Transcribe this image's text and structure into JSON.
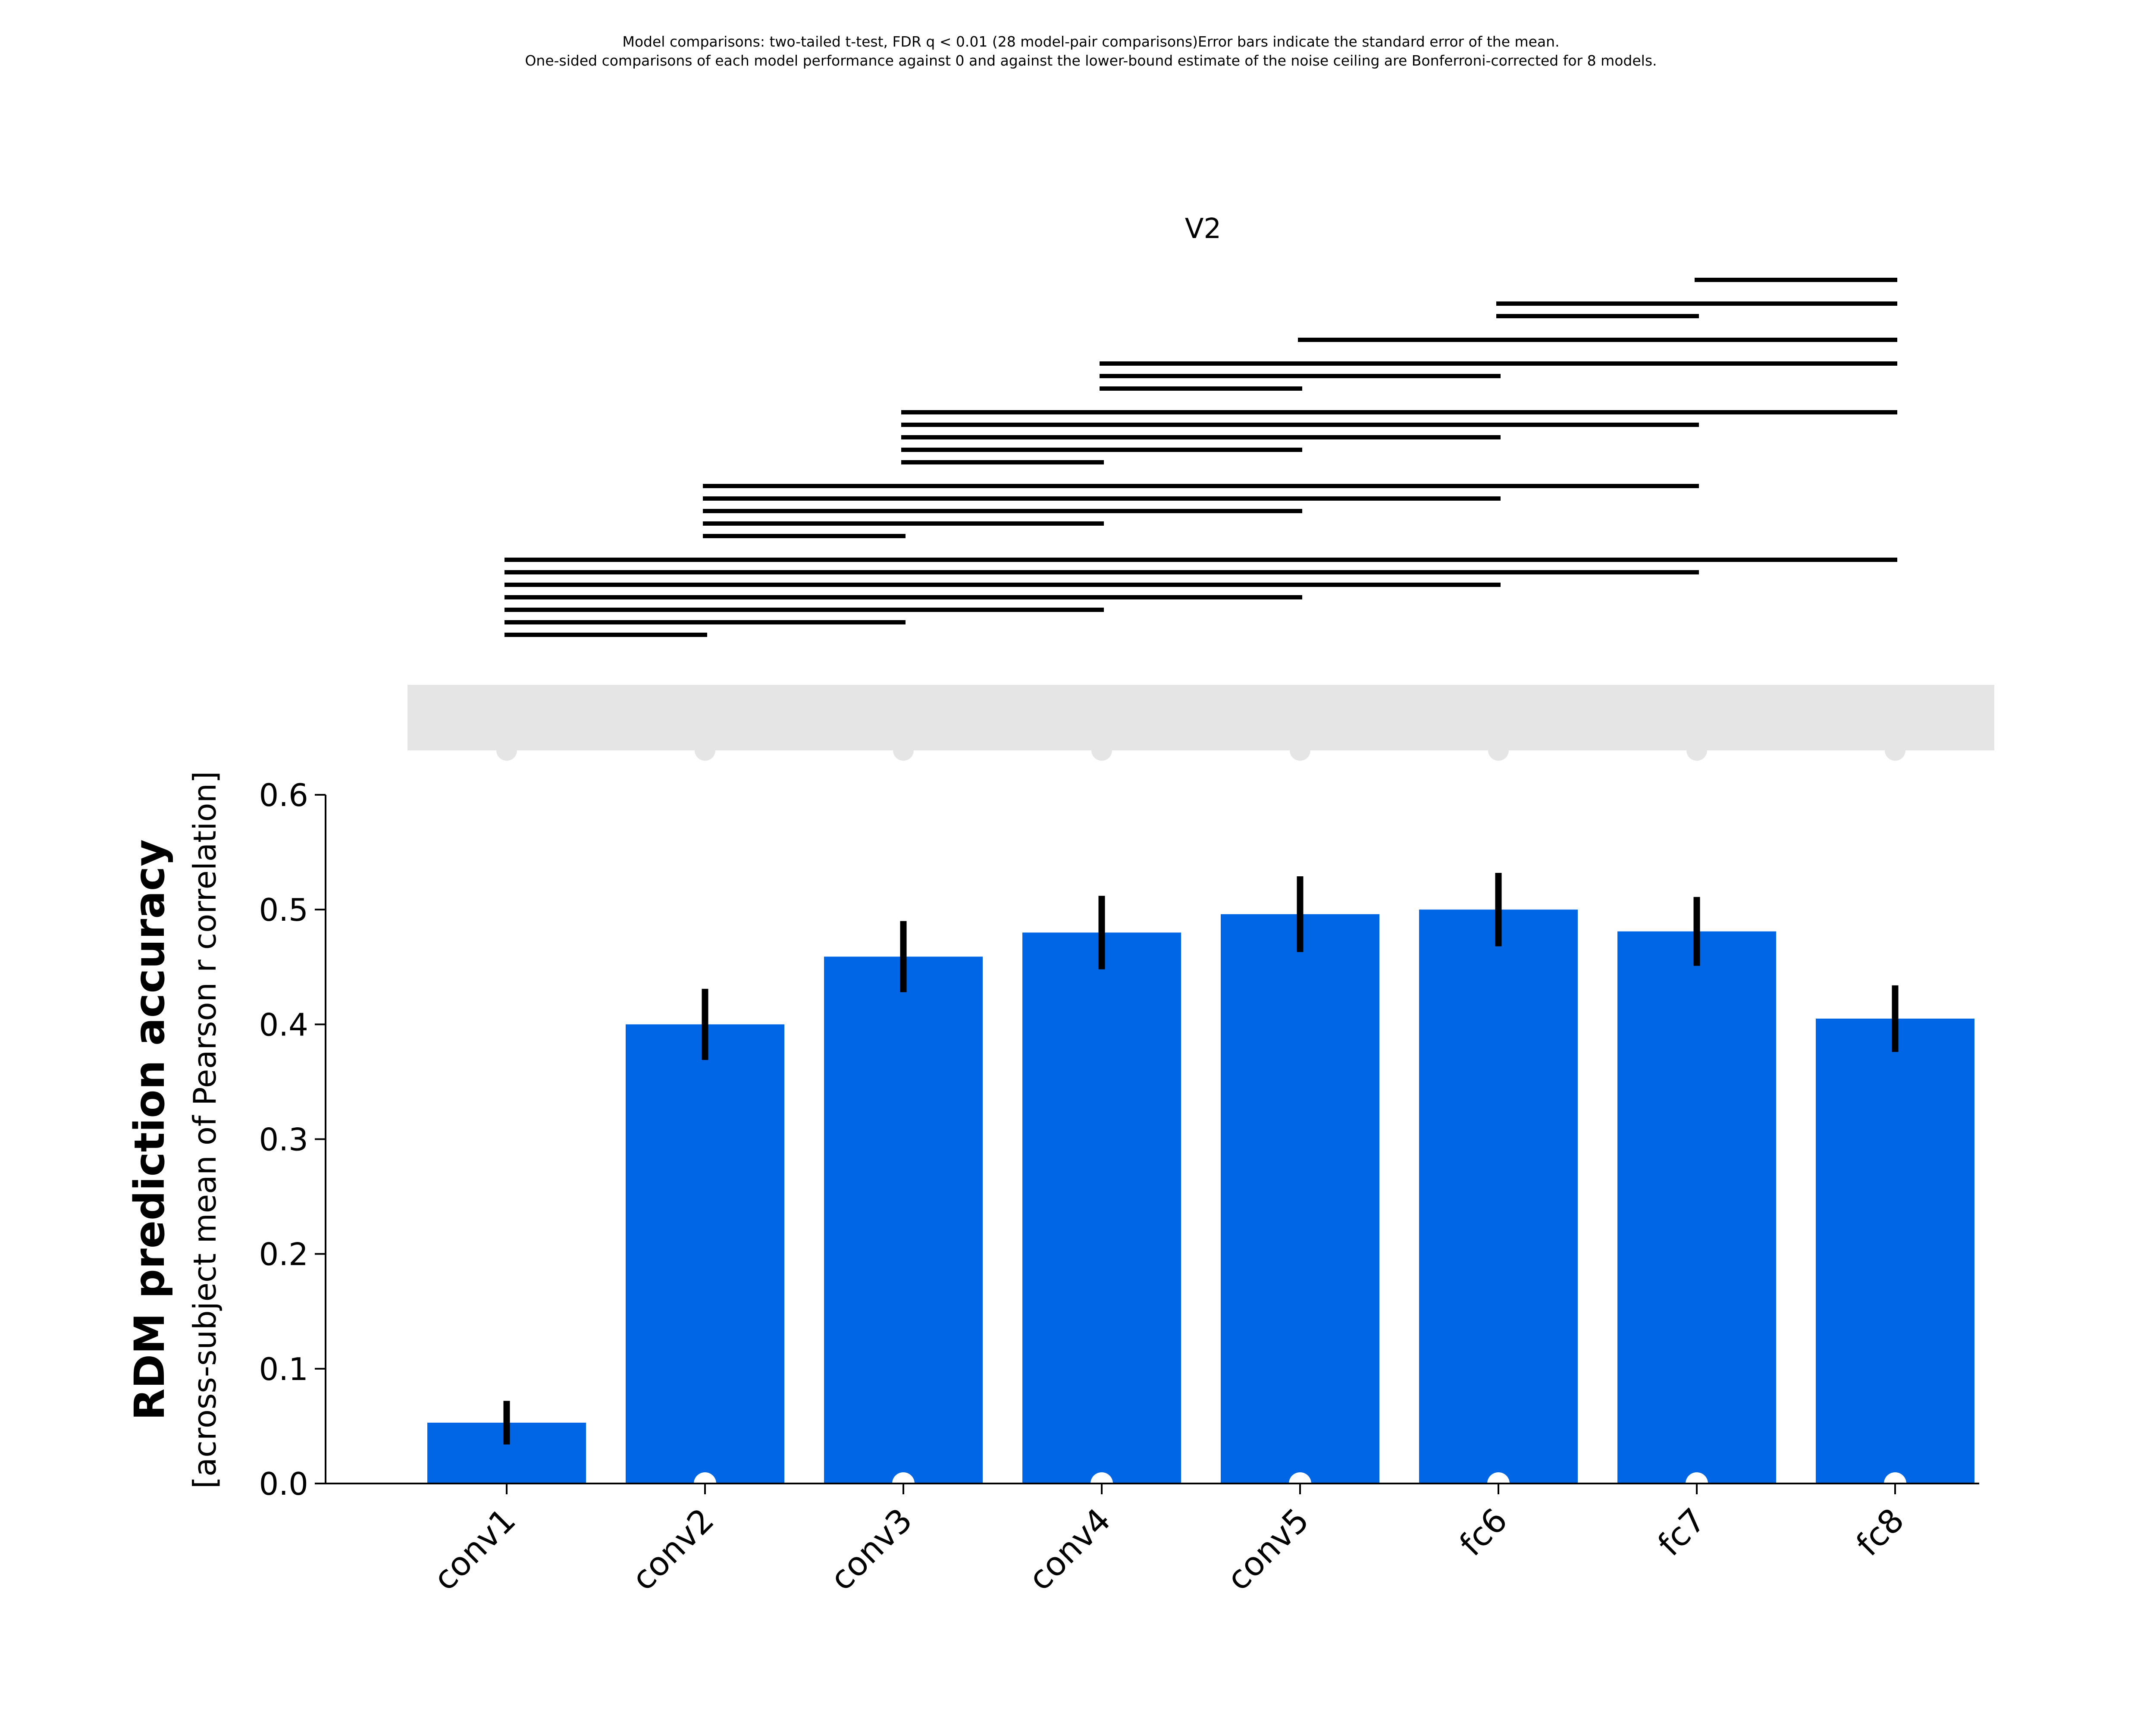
{
  "chart_data": {
    "type": "bar",
    "notes": [
      "Model comparisons: two-tailed t-test, FDR q < 0.01 (28 model-pair comparisons)Error bars indicate the standard error of the mean.",
      "One-sided comparisons of each model performance against 0 and against the lower-bound estimate of the noise ceiling are Bonferroni-corrected for 8 models."
    ],
    "title": "V2",
    "ylabel": "RDM prediction accuracy",
    "ylabel_sub": "[across-subject mean of Pearson r correlation]",
    "xlabel": "",
    "categories": [
      "conv1",
      "conv2",
      "conv3",
      "conv4",
      "conv5",
      "fc6",
      "fc7",
      "fc8"
    ],
    "values": [
      0.053,
      0.4,
      0.459,
      0.48,
      0.496,
      0.5,
      0.481,
      0.405
    ],
    "errors": [
      0.019,
      0.031,
      0.031,
      0.032,
      0.033,
      0.032,
      0.03,
      0.029
    ],
    "ylim": [
      0,
      0.6
    ],
    "yticks": [
      "0.0",
      "0.1",
      "0.2",
      "0.3",
      "0.4",
      "0.5",
      "0.6"
    ],
    "grid": false,
    "significant_vs_zero": [
      "conv2",
      "conv3",
      "conv4",
      "conv5",
      "fc6",
      "fc7",
      "fc8"
    ],
    "noise_ceiling_band": {
      "lower": 0.64,
      "upper": 0.7
    },
    "pairwise_significant": [
      [
        "conv1",
        "conv2"
      ],
      [
        "conv1",
        "conv3"
      ],
      [
        "conv1",
        "conv4"
      ],
      [
        "conv1",
        "conv5"
      ],
      [
        "conv1",
        "fc6"
      ],
      [
        "conv1",
        "fc7"
      ],
      [
        "conv1",
        "fc8"
      ],
      [
        "conv2",
        "conv3"
      ],
      [
        "conv2",
        "conv4"
      ],
      [
        "conv2",
        "conv5"
      ],
      [
        "conv2",
        "fc6"
      ],
      [
        "conv2",
        "fc7"
      ],
      [
        "conv3",
        "conv4"
      ],
      [
        "conv3",
        "conv5"
      ],
      [
        "conv3",
        "fc6"
      ],
      [
        "conv3",
        "fc7"
      ],
      [
        "conv3",
        "fc8"
      ],
      [
        "conv4",
        "conv5"
      ],
      [
        "conv4",
        "fc6"
      ],
      [
        "conv4",
        "fc8"
      ],
      [
        "conv5",
        "fc8"
      ],
      [
        "fc6",
        "fc7"
      ],
      [
        "fc6",
        "fc8"
      ],
      [
        "fc7",
        "fc8"
      ]
    ],
    "colors": {
      "bar": "#0066e6",
      "error_bar": "#000000",
      "noise_ceiling": "#e5e5e5",
      "marker_zero": "#ffffff",
      "marker_ceiling": "#e5e5e5",
      "comparison_line": "#000000"
    }
  }
}
